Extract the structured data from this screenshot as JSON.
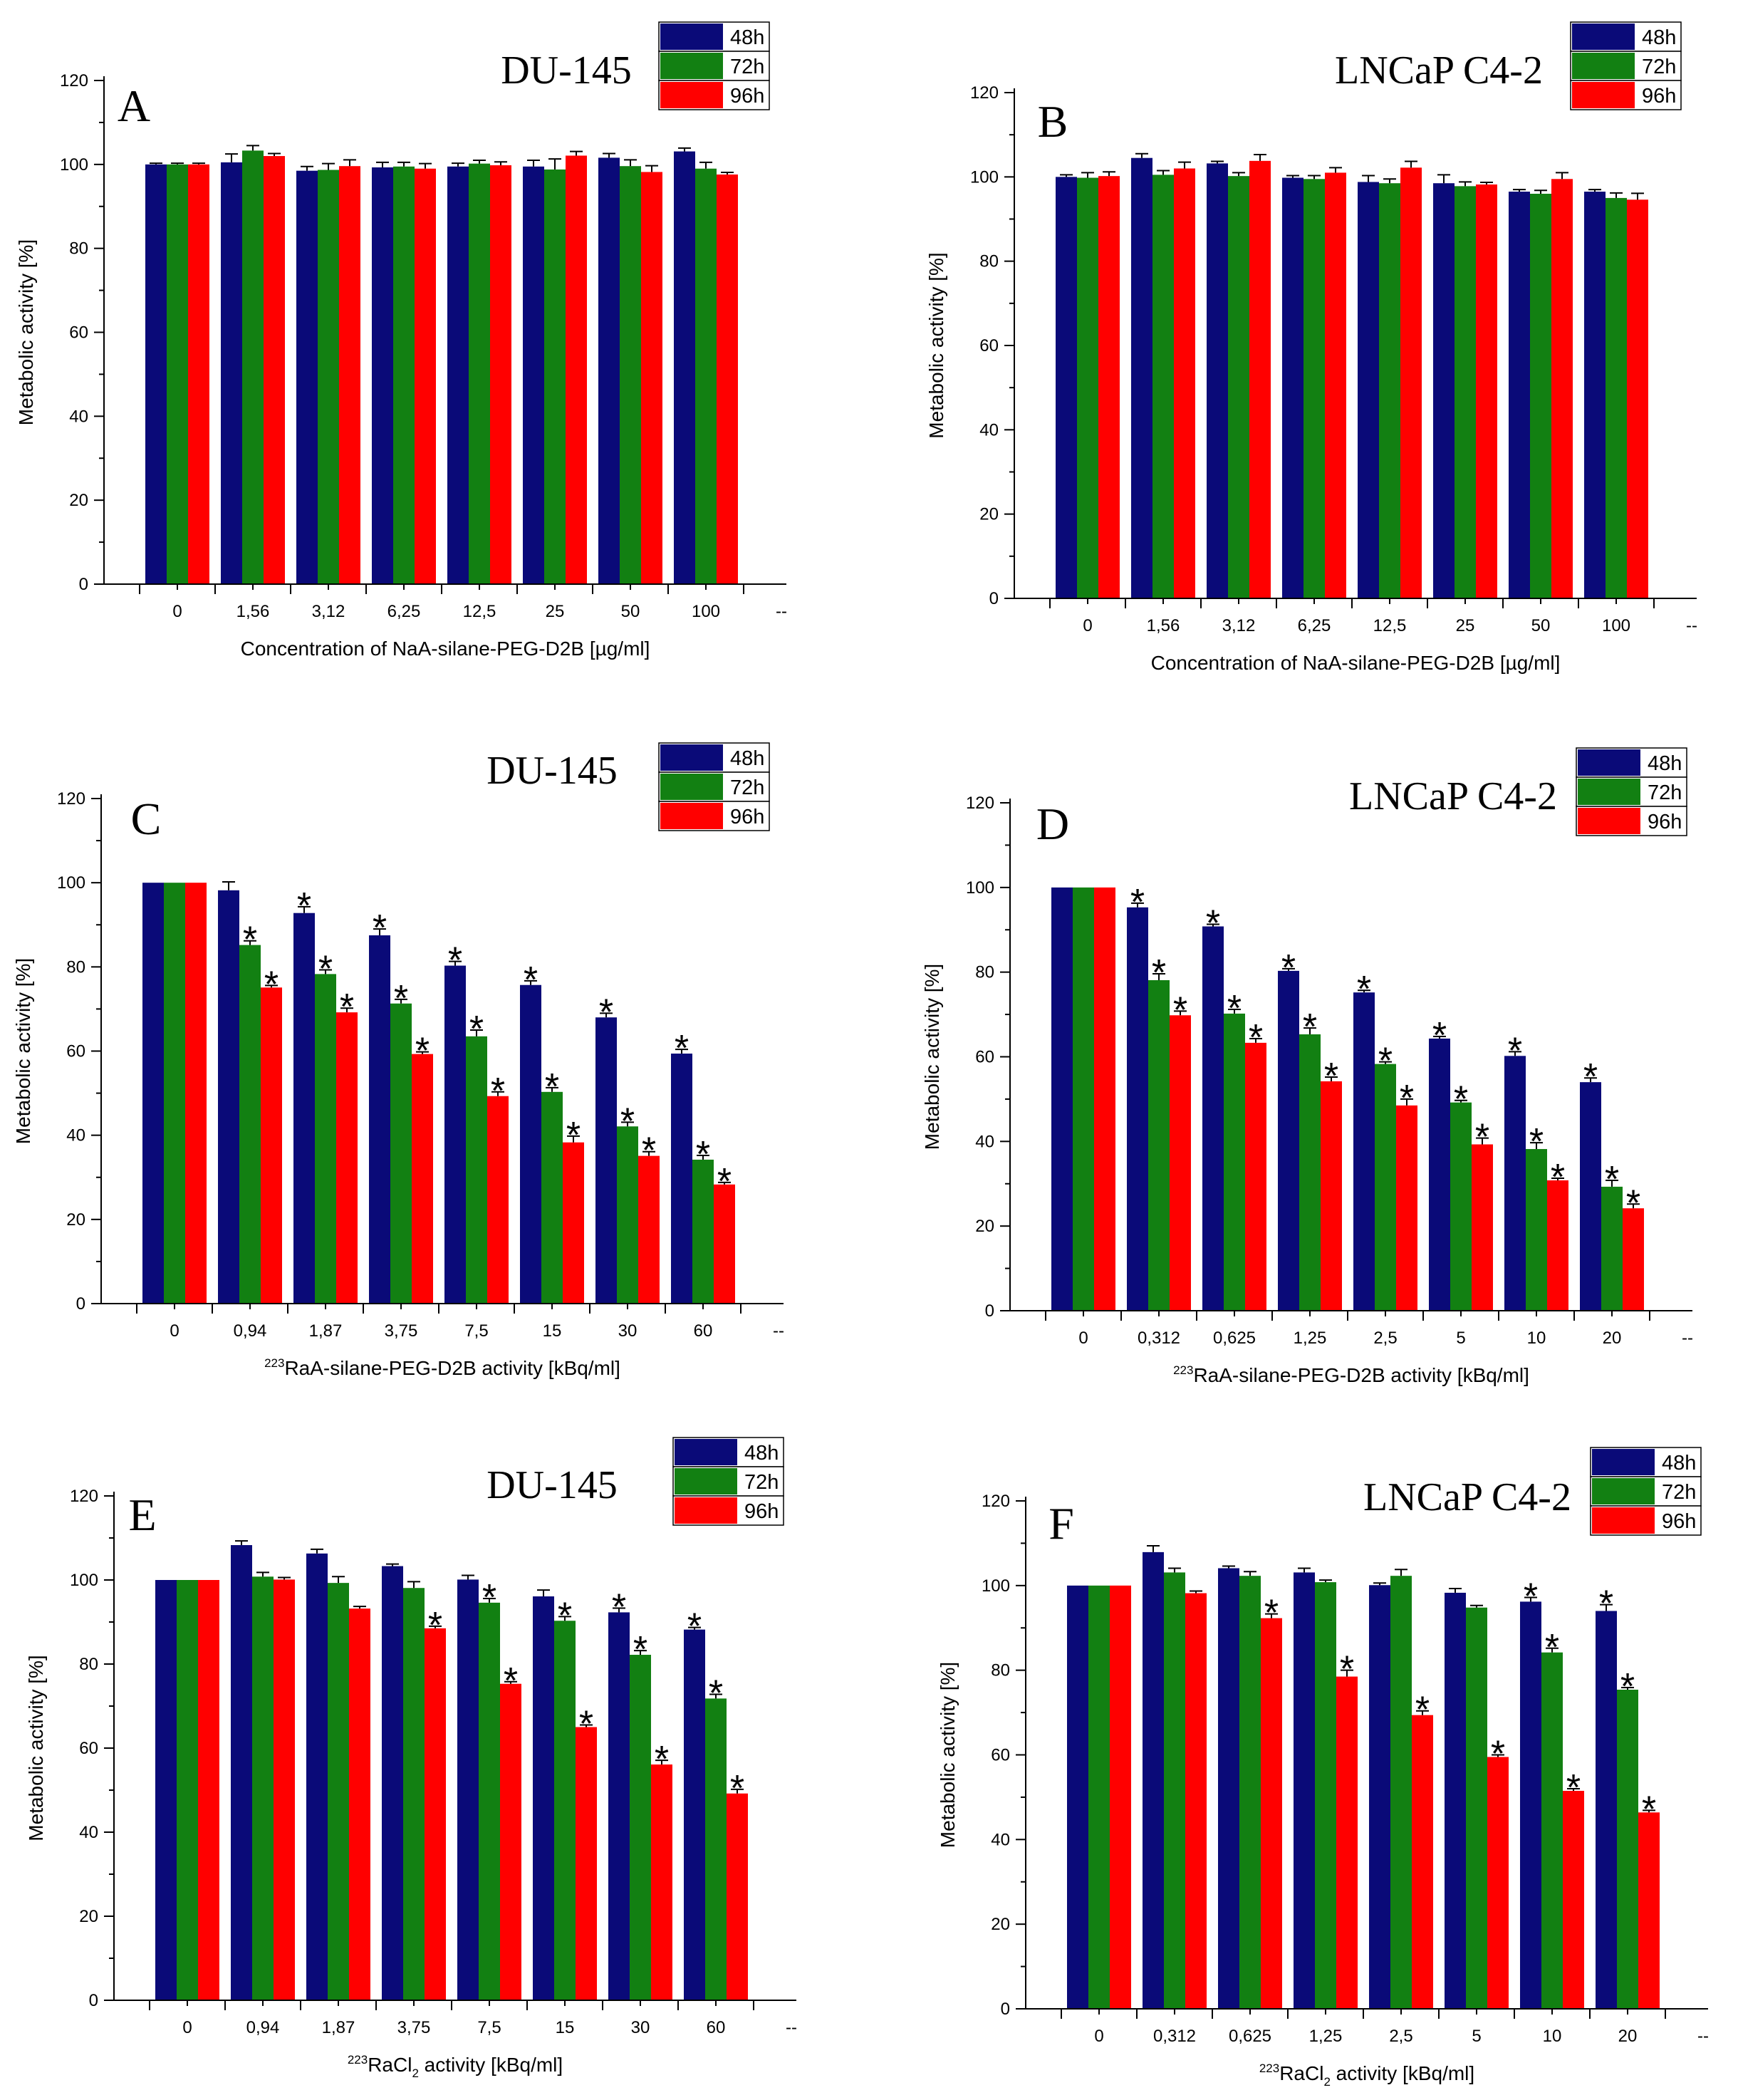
{
  "legend_labels": [
    "48h",
    "72h",
    "96h"
  ],
  "colors": {
    "48h": "#0a0a78",
    "72h": "#128012",
    "96h": "#ff0000",
    "axis": "#000000"
  },
  "significance_marker": "*",
  "chart_data": [
    {
      "panel": "A",
      "title": "DU-145",
      "type": "bar",
      "ylabel": "Metabolic activity [%]",
      "xlabel": "Concentration of NaA-silane-PEG-D2B [µg/ml]",
      "xlabel_sup": "",
      "xlabel_sub": "",
      "ylim": [
        0,
        120
      ],
      "yticks": [
        "0",
        "20",
        "40",
        "60",
        "80",
        "100",
        "120"
      ],
      "categories": [
        "0",
        "1,56",
        "3,12",
        "6,25",
        "12,5",
        "25",
        "50",
        "100"
      ],
      "end_tick_label": "--",
      "legend_position": "top-right",
      "series": [
        {
          "name": "48h",
          "values": [
            100,
            100.5,
            98.5,
            99.3,
            99.5,
            99.5,
            101.6,
            103.1
          ],
          "errors": [
            0.3,
            2,
            1,
            1.2,
            0.8,
            1.5,
            1,
            0.8
          ],
          "significant": [
            0,
            0,
            0,
            0,
            0,
            0,
            0,
            0
          ]
        },
        {
          "name": "72h",
          "values": [
            100,
            103.3,
            98.7,
            99.5,
            100.2,
            98.8,
            99.6,
            99.0
          ],
          "errors": [
            0.3,
            1.2,
            1.5,
            1,
            0.8,
            2.5,
            1.5,
            1.5
          ],
          "significant": [
            0,
            0,
            0,
            0,
            0,
            0,
            0,
            0
          ]
        },
        {
          "name": "96h",
          "values": [
            100,
            102.0,
            99.6,
            99.0,
            99.8,
            102.1,
            98.2,
            97.6
          ],
          "errors": [
            0.3,
            0.6,
            1.5,
            1.2,
            0.8,
            1,
            1.5,
            0.5
          ],
          "significant": [
            0,
            0,
            0,
            0,
            0,
            0,
            0,
            0
          ]
        }
      ]
    },
    {
      "panel": "B",
      "title": "LNCaP C4-2",
      "type": "bar",
      "ylabel": "Metabolic activity [%]",
      "xlabel": "Concentration of NaA-silane-PEG-D2B [µg/ml]",
      "xlabel_sup": "",
      "xlabel_sub": "",
      "ylim": [
        0,
        120
      ],
      "yticks": [
        "0",
        "20",
        "40",
        "60",
        "80",
        "100",
        "120"
      ],
      "categories": [
        "0",
        "1,56",
        "3,12",
        "6,25",
        "12,5",
        "25",
        "50",
        "100"
      ],
      "end_tick_label": "--",
      "legend_position": "top-right",
      "series": [
        {
          "name": "48h",
          "values": [
            100,
            104.5,
            103.2,
            99.8,
            98.8,
            98.5,
            96.5,
            96.5
          ],
          "errors": [
            0.5,
            1,
            0.5,
            0.5,
            1.5,
            2,
            0.5,
            0.5
          ],
          "significant": [
            0,
            0,
            0,
            0,
            0,
            0,
            0,
            0
          ]
        },
        {
          "name": "72h",
          "values": [
            99.8,
            100.5,
            100.2,
            99.5,
            98.5,
            97.8,
            96.0,
            95.0
          ],
          "errors": [
            1.2,
            1,
            0.8,
            0.8,
            1,
            1,
            0.8,
            1.2
          ],
          "significant": [
            0,
            0,
            0,
            0,
            0,
            0,
            0,
            0
          ]
        },
        {
          "name": "96h",
          "values": [
            100.2,
            102.0,
            103.8,
            101.0,
            102.2,
            98.2,
            99.5,
            94.6
          ],
          "errors": [
            1,
            1.5,
            1.5,
            1.2,
            1.5,
            0.5,
            1.5,
            1.5
          ],
          "significant": [
            0,
            0,
            0,
            0,
            0,
            0,
            0,
            0
          ]
        }
      ]
    },
    {
      "panel": "C",
      "title": "DU-145",
      "type": "bar",
      "ylabel": "Metabolic activity [%]",
      "xlabel": "RaA-silane-PEG-D2B activity [kBq/ml]",
      "xlabel_sup": "223",
      "xlabel_sub": "",
      "ylim": [
        0,
        120
      ],
      "yticks": [
        "0",
        "20",
        "40",
        "60",
        "80",
        "100",
        "120"
      ],
      "categories": [
        "0",
        "0,94",
        "1,87",
        "3,75",
        "7,5",
        "15",
        "30",
        "60"
      ],
      "end_tick_label": "--",
      "legend_position": "top-right",
      "series": [
        {
          "name": "48h",
          "values": [
            100,
            98.2,
            92.8,
            87.5,
            80.3,
            75.7,
            68.0,
            59.4
          ],
          "errors": [
            0,
            2,
            1.5,
            1.5,
            1,
            1,
            1,
            1
          ],
          "significant": [
            0,
            0,
            1,
            1,
            1,
            1,
            1,
            1
          ]
        },
        {
          "name": "72h",
          "values": [
            100,
            85.2,
            78.3,
            71.3,
            63.5,
            50.3,
            42.1,
            34.2
          ],
          "errors": [
            0,
            1,
            1,
            1,
            1.5,
            1,
            1,
            1
          ],
          "significant": [
            0,
            1,
            1,
            1,
            1,
            1,
            1,
            1
          ]
        },
        {
          "name": "96h",
          "values": [
            100,
            75.1,
            69.2,
            59.3,
            49.3,
            38.3,
            35.1,
            28.3
          ],
          "errors": [
            0,
            0.5,
            1,
            0.5,
            1,
            1.5,
            1,
            0.5
          ],
          "significant": [
            0,
            1,
            1,
            1,
            1,
            1,
            1,
            1
          ]
        }
      ]
    },
    {
      "panel": "D",
      "title": "LNCaP C4-2",
      "type": "bar",
      "ylabel": "Metabolic activity [%]",
      "xlabel": "RaA-silane-PEG-D2B activity [kBq/ml]",
      "xlabel_sup": "223",
      "xlabel_sub": "",
      "ylim": [
        0,
        120
      ],
      "yticks": [
        "0",
        "20",
        "40",
        "60",
        "80",
        "100",
        "120"
      ],
      "categories": [
        "0",
        "0,312",
        "0,625",
        "1,25",
        "2,5",
        "5",
        "10",
        "20"
      ],
      "end_tick_label": "--",
      "legend_position": "top-right",
      "series": [
        {
          "name": "48h",
          "values": [
            100,
            95.3,
            90.8,
            80.3,
            75.2,
            64.3,
            60.2,
            54.0
          ],
          "errors": [
            0,
            1,
            0.5,
            0.5,
            0.5,
            0.5,
            1,
            1
          ],
          "significant": [
            0,
            1,
            1,
            1,
            1,
            1,
            1,
            1
          ]
        },
        {
          "name": "72h",
          "values": [
            100,
            78.1,
            70.2,
            65.3,
            58.3,
            49.2,
            38.2,
            29.3
          ],
          "errors": [
            0,
            1.5,
            1,
            1.5,
            0.5,
            0.5,
            1.5,
            1.5
          ],
          "significant": [
            0,
            1,
            1,
            1,
            1,
            1,
            1,
            1
          ]
        },
        {
          "name": "96h",
          "values": [
            100,
            69.8,
            63.3,
            54.2,
            48.5,
            39.3,
            30.8,
            24.2
          ],
          "errors": [
            0,
            1,
            1,
            1,
            1.5,
            1.5,
            0.5,
            1
          ],
          "significant": [
            0,
            1,
            1,
            1,
            1,
            1,
            1,
            1
          ]
        }
      ]
    },
    {
      "panel": "E",
      "title": "DU-145",
      "type": "bar",
      "ylabel": "Metabolic activity [%]",
      "xlabel": "RaCl activity [kBq/ml]",
      "xlabel_sup": "223",
      "xlabel_sub": "2",
      "ylim": [
        0,
        120
      ],
      "yticks": [
        "0",
        "20",
        "40",
        "60",
        "80",
        "100",
        "120"
      ],
      "categories": [
        "0",
        "0,94",
        "1,87",
        "3,75",
        "7,5",
        "15",
        "30",
        "60"
      ],
      "end_tick_label": "--",
      "legend_position": "top-right",
      "series": [
        {
          "name": "48h",
          "values": [
            100,
            108.3,
            106.3,
            103.3,
            100.1,
            96.1,
            92.3,
            88.2
          ],
          "errors": [
            0,
            1,
            1,
            0.5,
            1,
            1.5,
            1,
            0.5
          ],
          "significant": [
            0,
            0,
            0,
            0,
            0,
            0,
            1,
            1
          ]
        },
        {
          "name": "72h",
          "values": [
            100,
            100.8,
            99.3,
            98.1,
            94.6,
            90.3,
            82.2,
            71.8
          ],
          "errors": [
            0,
            1,
            1.5,
            1.5,
            1,
            1,
            1,
            1
          ],
          "significant": [
            0,
            0,
            0,
            0,
            1,
            1,
            1,
            1
          ]
        },
        {
          "name": "96h",
          "values": [
            100,
            100.1,
            93.2,
            88.5,
            75.3,
            65.0,
            56.1,
            49.2
          ],
          "errors": [
            0,
            0.5,
            0.5,
            0.5,
            0.5,
            0.5,
            1,
            1
          ],
          "significant": [
            0,
            0,
            0,
            1,
            1,
            1,
            1,
            1
          ]
        }
      ]
    },
    {
      "panel": "F",
      "title": "LNCaP C4-2",
      "type": "bar",
      "ylabel": "Metabolic activity [%]",
      "xlabel": "RaCl activity [kBq/ml]",
      "xlabel_sup": "223",
      "xlabel_sub": "2",
      "ylim": [
        0,
        120
      ],
      "yticks": [
        "0",
        "20",
        "40",
        "60",
        "80",
        "100",
        "120"
      ],
      "categories": [
        "0",
        "0,312",
        "0,625",
        "1,25",
        "2,5",
        "5",
        "10",
        "20"
      ],
      "end_tick_label": "--",
      "legend_position": "top-right",
      "series": [
        {
          "name": "48h",
          "values": [
            100,
            107.9,
            104.1,
            103.1,
            100.1,
            98.3,
            96.2,
            94.0
          ],
          "errors": [
            0,
            1.5,
            0.5,
            1,
            0.5,
            1,
            1,
            1.5
          ],
          "significant": [
            0,
            0,
            0,
            0,
            0,
            0,
            1,
            1
          ]
        },
        {
          "name": "72h",
          "values": [
            100,
            103.1,
            102.3,
            100.8,
            102.3,
            94.8,
            84.2,
            75.4
          ],
          "errors": [
            0,
            1,
            1,
            0.5,
            1.5,
            0.5,
            1,
            0.5
          ],
          "significant": [
            0,
            0,
            0,
            0,
            0,
            0,
            1,
            1
          ]
        },
        {
          "name": "96h",
          "values": [
            100,
            98.2,
            92.3,
            78.5,
            69.4,
            59.5,
            51.5,
            46.4
          ],
          "errors": [
            0,
            0.5,
            1,
            1.5,
            1,
            0.5,
            0.5,
            0.5
          ],
          "significant": [
            0,
            0,
            1,
            1,
            1,
            1,
            1,
            1
          ]
        }
      ]
    }
  ]
}
